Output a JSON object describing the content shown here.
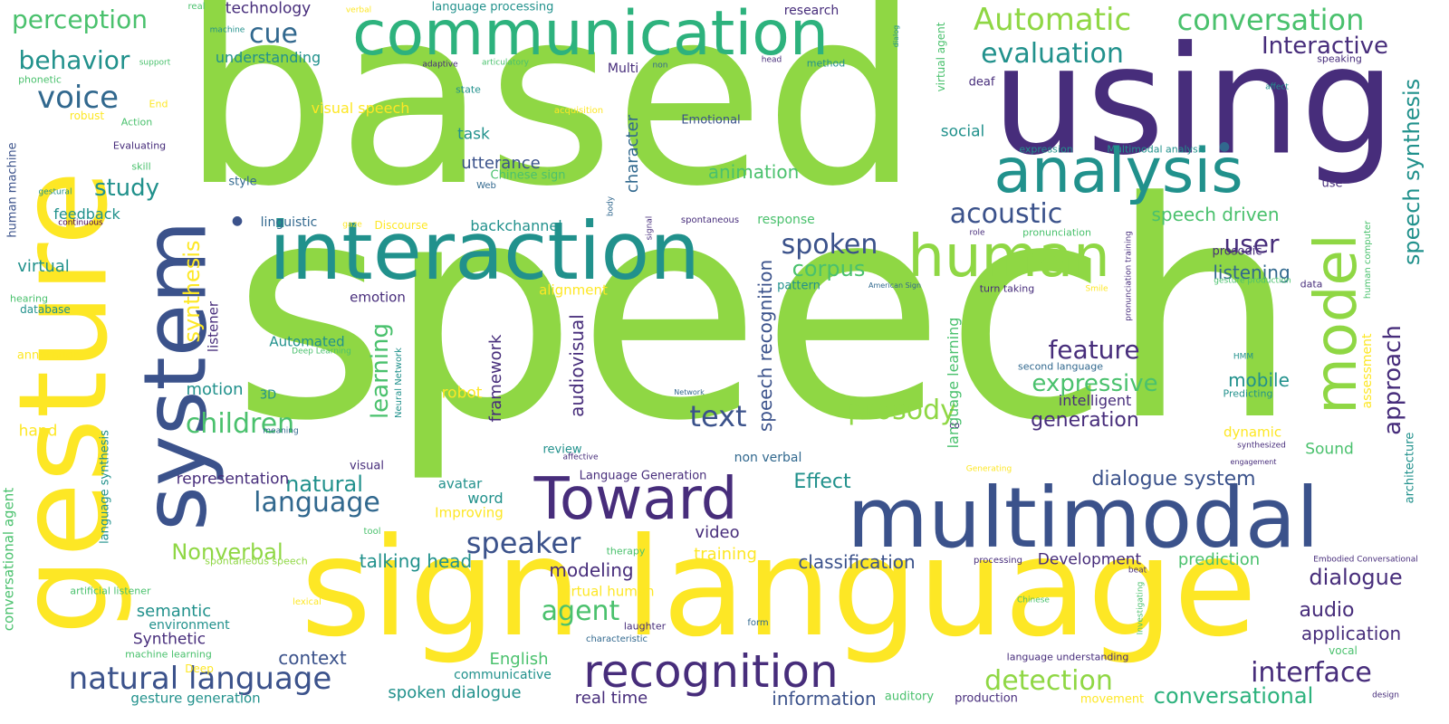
{
  "colors": {
    "lime": "#8fd744",
    "yellow": "#fde725",
    "green": "#4ac16d",
    "teal": "#21918c",
    "steel": "#3b528b",
    "purple": "#472d7b",
    "aqua": "#35b779",
    "blue": "#31688e",
    "sea": "#2db27d",
    "deep": "#440154"
  },
  "words": [
    {
      "text": "speech",
      "color": "lime"
    },
    {
      "text": "based",
      "color": "lime"
    },
    {
      "text": "using",
      "color": "purple"
    },
    {
      "text": "sign language",
      "color": "yellow"
    },
    {
      "text": "gesture",
      "color": "yellow"
    },
    {
      "text": "system",
      "color": "steel"
    },
    {
      "text": "interaction",
      "color": "teal"
    },
    {
      "text": "communication",
      "color": "sea"
    },
    {
      "text": "multimodal",
      "color": "steel"
    },
    {
      "text": "analysis",
      "color": "teal"
    },
    {
      "text": "human",
      "color": "lime"
    },
    {
      "text": "model",
      "color": "lime"
    },
    {
      "text": "Toward",
      "color": "purple"
    },
    {
      "text": "recognition",
      "color": "purple"
    },
    {
      "text": "natural language",
      "color": "steel"
    },
    {
      "text": "Automatic",
      "color": "lime"
    },
    {
      "text": "conversation",
      "color": "green"
    },
    {
      "text": "evaluation",
      "color": "teal"
    },
    {
      "text": "Interactive",
      "color": "purple"
    },
    {
      "text": "acoustic",
      "color": "steel"
    },
    {
      "text": "perception",
      "color": "green"
    },
    {
      "text": "behavior",
      "color": "teal"
    },
    {
      "text": "voice",
      "color": "blue"
    },
    {
      "text": "cue",
      "color": "blue"
    },
    {
      "text": "study",
      "color": "teal"
    },
    {
      "text": "speech synthesis",
      "color": "teal"
    },
    {
      "text": "spoken",
      "color": "steel"
    },
    {
      "text": "corpus",
      "color": "green"
    },
    {
      "text": "user",
      "color": "purple"
    },
    {
      "text": "language",
      "color": "blue"
    },
    {
      "text": "children",
      "color": "green"
    },
    {
      "text": "text",
      "color": "steel"
    },
    {
      "text": "prosody",
      "color": "lime"
    },
    {
      "text": "feature",
      "color": "purple"
    },
    {
      "text": "expressive",
      "color": "green"
    },
    {
      "text": "speaker",
      "color": "steel"
    },
    {
      "text": "agent",
      "color": "green"
    },
    {
      "text": "dialogue",
      "color": "purple"
    },
    {
      "text": "interface",
      "color": "purple"
    },
    {
      "text": "detection",
      "color": "lime"
    },
    {
      "text": "conversational",
      "color": "sea"
    },
    {
      "text": "approach",
      "color": "purple"
    },
    {
      "text": "synthesis",
      "color": "yellow"
    },
    {
      "text": "learning",
      "color": "green"
    },
    {
      "text": "speech recognition",
      "color": "steel"
    },
    {
      "text": "audiovisual",
      "color": "purple"
    },
    {
      "text": "framework",
      "color": "purple"
    },
    {
      "text": "character",
      "color": "blue"
    },
    {
      "text": "animation",
      "color": "green"
    },
    {
      "text": "speech driven",
      "color": "green"
    },
    {
      "text": "listening",
      "color": "blue"
    },
    {
      "text": "mobile",
      "color": "teal"
    },
    {
      "text": "generation",
      "color": "purple"
    },
    {
      "text": "dialogue system",
      "color": "steel"
    },
    {
      "text": "modeling",
      "color": "purple"
    },
    {
      "text": "talking head",
      "color": "teal"
    },
    {
      "text": "Nonverbal",
      "color": "lime"
    },
    {
      "text": "natural",
      "color": "teal"
    },
    {
      "text": "representation",
      "color": "purple"
    },
    {
      "text": "motion",
      "color": "teal"
    },
    {
      "text": "robot",
      "color": "yellow"
    },
    {
      "text": "Effect",
      "color": "teal"
    },
    {
      "text": "classification",
      "color": "steel"
    },
    {
      "text": "Development",
      "color": "purple"
    },
    {
      "text": "prediction",
      "color": "green"
    },
    {
      "text": "audio",
      "color": "purple"
    },
    {
      "text": "application",
      "color": "purple"
    },
    {
      "text": "information",
      "color": "steel"
    },
    {
      "text": "spoken dialogue",
      "color": "teal"
    },
    {
      "text": "real time",
      "color": "purple"
    },
    {
      "text": "context",
      "color": "steel"
    },
    {
      "text": "semantic",
      "color": "teal"
    },
    {
      "text": "Synthetic",
      "color": "purple"
    },
    {
      "text": "environment",
      "color": "teal"
    },
    {
      "text": "gesture generation",
      "color": "teal"
    },
    {
      "text": "English",
      "color": "green"
    },
    {
      "text": "communicative",
      "color": "teal"
    },
    {
      "text": "video",
      "color": "purple"
    },
    {
      "text": "training",
      "color": "yellow"
    },
    {
      "text": "word",
      "color": "teal"
    },
    {
      "text": "avatar",
      "color": "teal"
    },
    {
      "text": "Improving",
      "color": "yellow"
    },
    {
      "text": "virtual human",
      "color": "yellow"
    },
    {
      "text": "backchannel",
      "color": "teal"
    },
    {
      "text": "utterance",
      "color": "steel"
    },
    {
      "text": "task",
      "color": "teal"
    },
    {
      "text": "visual speech",
      "color": "yellow"
    },
    {
      "text": "technology",
      "color": "purple"
    },
    {
      "text": "understanding",
      "color": "teal"
    },
    {
      "text": "feedback",
      "color": "teal"
    },
    {
      "text": "virtual",
      "color": "teal"
    },
    {
      "text": "emotion",
      "color": "purple"
    },
    {
      "text": "alignment",
      "color": "yellow"
    },
    {
      "text": "Automated",
      "color": "teal"
    },
    {
      "text": "listener",
      "color": "purple"
    },
    {
      "text": "social",
      "color": "teal"
    },
    {
      "text": "intelligent",
      "color": "purple"
    },
    {
      "text": "language learning",
      "color": "green"
    },
    {
      "text": "Sound",
      "color": "green"
    },
    {
      "text": "dynamic",
      "color": "yellow"
    },
    {
      "text": "assessment",
      "color": "yellow"
    },
    {
      "text": "hand",
      "color": "yellow"
    },
    {
      "text": "conversational agent",
      "color": "green"
    },
    {
      "text": "response",
      "color": "green"
    },
    {
      "text": "Emotional",
      "color": "steel"
    },
    {
      "text": "linguistic",
      "color": "blue"
    },
    {
      "text": "non verbal",
      "color": "blue"
    },
    {
      "text": "Language Generation",
      "color": "purple"
    },
    {
      "text": "Multi",
      "color": "purple"
    },
    {
      "text": "research",
      "color": "purple"
    },
    {
      "text": "language processing",
      "color": "teal"
    },
    {
      "text": "style",
      "color": "blue"
    },
    {
      "text": "human machine",
      "color": "steel"
    },
    {
      "text": "language synthesis",
      "color": "teal"
    },
    {
      "text": "prosodic",
      "color": "purple"
    },
    {
      "text": "pattern",
      "color": "teal"
    },
    {
      "text": "review",
      "color": "teal"
    },
    {
      "text": "visual",
      "color": "purple"
    },
    {
      "text": "3D",
      "color": "teal"
    },
    {
      "text": "lexical",
      "color": "yellow"
    },
    {
      "text": "machine learning",
      "color": "green"
    },
    {
      "text": "database",
      "color": "teal"
    },
    {
      "text": "hearing",
      "color": "green"
    },
    {
      "text": "annotation",
      "color": "yellow"
    },
    {
      "text": "phonetic",
      "color": "green"
    },
    {
      "text": "robust",
      "color": "yellow"
    },
    {
      "text": "End",
      "color": "yellow"
    },
    {
      "text": "Action",
      "color": "green"
    },
    {
      "text": "Evaluating",
      "color": "purple"
    },
    {
      "text": "skill",
      "color": "green"
    },
    {
      "text": "gestural",
      "color": "teal"
    },
    {
      "text": "continuous",
      "color": "deep"
    },
    {
      "text": "support",
      "color": "green"
    },
    {
      "text": "machine",
      "color": "teal"
    },
    {
      "text": "real",
      "color": "green"
    },
    {
      "text": "verbal",
      "color": "yellow"
    },
    {
      "text": "adaptive",
      "color": "purple"
    },
    {
      "text": "articulatory",
      "color": "green"
    },
    {
      "text": "acquisition",
      "color": "yellow"
    },
    {
      "text": "state",
      "color": "teal"
    },
    {
      "text": "Chinese sign",
      "color": "green"
    },
    {
      "text": "Web",
      "color": "blue"
    },
    {
      "text": "Discourse",
      "color": "yellow"
    },
    {
      "text": "gaze",
      "color": "yellow"
    },
    {
      "text": "spontaneous",
      "color": "purple"
    },
    {
      "text": "body",
      "color": "blue"
    },
    {
      "text": "signal",
      "color": "purple"
    },
    {
      "text": "Deep Learning",
      "color": "green"
    },
    {
      "text": "Neural Network",
      "color": "teal"
    },
    {
      "text": "meaning",
      "color": "blue"
    },
    {
      "text": "affective",
      "color": "purple"
    },
    {
      "text": "tool",
      "color": "green"
    },
    {
      "text": "therapy",
      "color": "green"
    },
    {
      "text": "spontaneous speech",
      "color": "lime"
    },
    {
      "text": "artificial listener",
      "color": "green"
    },
    {
      "text": "Deep",
      "color": "yellow"
    },
    {
      "text": "laughter",
      "color": "purple"
    },
    {
      "text": "characteristic",
      "color": "blue"
    },
    {
      "text": "form",
      "color": "blue"
    },
    {
      "text": "processing",
      "color": "purple"
    },
    {
      "text": "Chinese",
      "color": "green"
    },
    {
      "text": "Investigating",
      "color": "green"
    },
    {
      "text": "beat",
      "color": "purple"
    },
    {
      "text": "language understanding",
      "color": "purple"
    },
    {
      "text": "auditory",
      "color": "green"
    },
    {
      "text": "production",
      "color": "purple"
    },
    {
      "text": "movement",
      "color": "yellow"
    },
    {
      "text": "design",
      "color": "purple"
    },
    {
      "text": "vocal",
      "color": "green"
    },
    {
      "text": "Embodied Conversational",
      "color": "purple"
    },
    {
      "text": "engagement",
      "color": "purple"
    },
    {
      "text": "synthesized",
      "color": "purple"
    },
    {
      "text": "Generating",
      "color": "yellow"
    },
    {
      "text": "co",
      "color": "purple"
    },
    {
      "text": "Predicting",
      "color": "teal"
    },
    {
      "text": "HMM",
      "color": "teal"
    },
    {
      "text": "Network",
      "color": "blue"
    },
    {
      "text": "second language",
      "color": "blue"
    },
    {
      "text": "American Sign",
      "color": "blue"
    },
    {
      "text": "turn taking",
      "color": "purple"
    },
    {
      "text": "role",
      "color": "purple"
    },
    {
      "text": "pronunciation",
      "color": "green"
    },
    {
      "text": "pronunciation training",
      "color": "purple"
    },
    {
      "text": "Smile",
      "color": "yellow"
    },
    {
      "text": "gesture production",
      "color": "green"
    },
    {
      "text": "data",
      "color": "purple"
    },
    {
      "text": "human computer",
      "color": "green"
    },
    {
      "text": "architecture",
      "color": "teal"
    },
    {
      "text": "use",
      "color": "purple"
    },
    {
      "text": "speaking",
      "color": "purple"
    },
    {
      "text": "affect",
      "color": "teal"
    },
    {
      "text": "head",
      "color": "purple"
    },
    {
      "text": "method",
      "color": "teal"
    },
    {
      "text": "non",
      "color": "blue"
    },
    {
      "text": "dialog",
      "color": "teal"
    },
    {
      "text": "virtual agent",
      "color": "green"
    },
    {
      "text": "deaf",
      "color": "purple"
    },
    {
      "text": "expression",
      "color": "teal"
    },
    {
      "text": "Multimodal analysis",
      "color": "teal"
    }
  ]
}
